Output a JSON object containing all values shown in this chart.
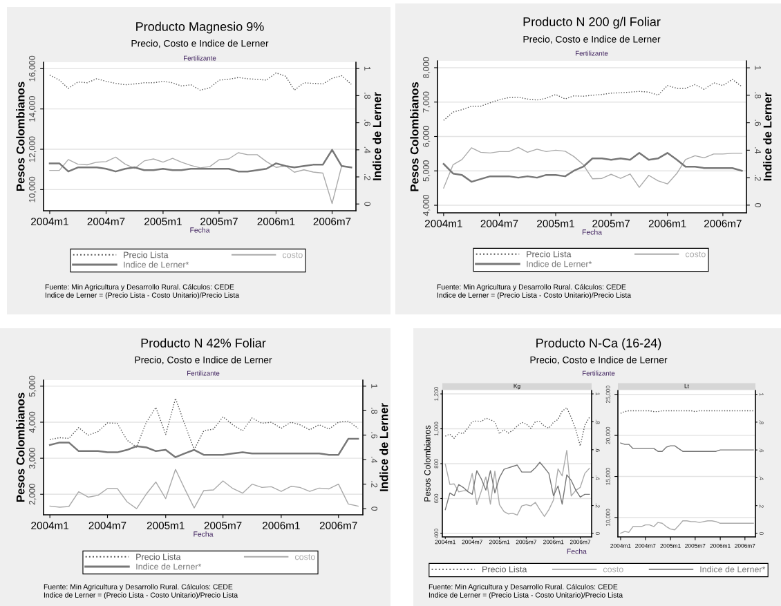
{
  "chart_data": [
    {
      "type": "line",
      "title": "Producto Magnesio 9%",
      "subtitle": "Precio, Costo e Indice de Lerner",
      "xlabel": "Fecha",
      "ylabel": "Pesos Colombianos",
      "y2label": "Indice de Lerner",
      "grid": "y",
      "legend": "bottom",
      "annotations": [
        "Fertilizante",
        "Fuente: Min Agricultura y Desarrollo Rural. Cálculos: CEDE",
        "Indice de Lerner = (Precio Lista - Costo Unitario)/Precio Lista"
      ],
      "x": [
        "2004-01",
        "2004-02",
        "2004-03",
        "2004-04",
        "2004-05",
        "2004-06",
        "2004-07",
        "2004-08",
        "2004-09",
        "2004-10",
        "2004-11",
        "2004-12",
        "2005-01",
        "2005-02",
        "2005-03",
        "2005-04",
        "2005-05",
        "2005-06",
        "2005-07",
        "2005-08",
        "2005-09",
        "2005-10",
        "2005-11",
        "2005-12",
        "2006-01",
        "2006-02",
        "2006-03",
        "2006-04",
        "2006-05",
        "2006-06",
        "2006-07",
        "2006-08",
        "2006-09"
      ],
      "xlim": [
        "2003-12-12",
        "2006-09-16"
      ],
      "xticks": [
        {
          "value": "2004-01",
          "label": "2004m1"
        },
        {
          "value": "2004-07",
          "label": "2004m7"
        },
        {
          "value": "2005-01",
          "label": "2005m1"
        },
        {
          "value": "2005-07",
          "label": "2005m7"
        },
        {
          "value": "2006-01",
          "label": "2006m1"
        },
        {
          "value": "2006-07",
          "label": "2006m7"
        }
      ],
      "ylim": [
        8950,
        16320
      ],
      "yticks": [
        {
          "value": 10000,
          "label": "10,000"
        },
        {
          "value": 12000,
          "label": "12,000"
        },
        {
          "value": 14000,
          "label": "14,000"
        },
        {
          "value": 16000,
          "label": "16,000"
        }
      ],
      "y2lim": [
        -0.05,
        1.047
      ],
      "y2ticks": [
        0,
        {
          "value": 0.2,
          "label": ".2"
        },
        {
          "value": 0.4,
          "label": ".4"
        },
        {
          "value": 0.6,
          "label": ".6"
        },
        {
          "value": 0.8,
          "label": ".8"
        },
        1
      ],
      "series": [
        {
          "name": "Precio Lista",
          "color": "#555555",
          "line_style": "dotted",
          "values": [
            15680,
            15430,
            15020,
            15340,
            15300,
            15500,
            15370,
            15270,
            15200,
            15240,
            15300,
            15300,
            15370,
            15300,
            15140,
            15200,
            14930,
            15050,
            15430,
            15470,
            15560,
            15500,
            15470,
            15430,
            15790,
            15620,
            14930,
            15300,
            15270,
            15240,
            15520,
            15650,
            15220
          ]
        },
        {
          "name": "costo",
          "color": "#aaaaaa",
          "values": [
            10950,
            10950,
            11490,
            11260,
            11230,
            11360,
            11390,
            11610,
            11260,
            11050,
            11420,
            11520,
            11360,
            11550,
            11360,
            11200,
            11080,
            11140,
            11480,
            11520,
            11830,
            11730,
            11730,
            11390,
            11100,
            11180,
            10860,
            10980,
            10870,
            10820,
            9310,
            11180,
            11100
          ]
        },
        {
          "name": "Indice de Lerner*",
          "color": "#777777",
          "axis": "y2",
          "values": [
            0.3,
            0.3,
            0.24,
            0.27,
            0.27,
            0.27,
            0.26,
            0.24,
            0.26,
            0.27,
            0.25,
            0.25,
            0.26,
            0.25,
            0.25,
            0.26,
            0.26,
            0.26,
            0.26,
            0.26,
            0.24,
            0.24,
            0.25,
            0.26,
            0.3,
            0.28,
            0.27,
            0.28,
            0.29,
            0.29,
            0.4,
            0.28,
            0.27
          ]
        }
      ]
    },
    {
      "type": "line",
      "title": "Producto N 200 g/l Foliar",
      "subtitle": "Precio, Costo e Indice de Lerner",
      "xlabel": "Fecha",
      "ylabel": "Pesos Colombianos",
      "y2label": "Indice de Lerner",
      "grid": "y",
      "legend": "bottom",
      "annotations": [
        "Fertilizante",
        "Fuente: Min Agricultura y Desarrollo Rural. Cálculos: CEDE",
        "Indice de Lerner = (Precio Lista - Costo Unitario)/Precio Lista"
      ],
      "x": [
        "2004-01",
        "2004-02",
        "2004-03",
        "2004-04",
        "2004-05",
        "2004-06",
        "2004-07",
        "2004-08",
        "2004-09",
        "2004-10",
        "2004-11",
        "2004-12",
        "2005-01",
        "2005-02",
        "2005-03",
        "2005-04",
        "2005-05",
        "2005-06",
        "2005-07",
        "2005-08",
        "2005-09",
        "2005-10",
        "2005-11",
        "2005-12",
        "2006-01",
        "2006-02",
        "2006-03",
        "2006-04",
        "2006-05",
        "2006-06",
        "2006-07",
        "2006-08",
        "2006-09"
      ],
      "xlim": [
        "2003-12-12",
        "2006-09-16"
      ],
      "xticks": [
        {
          "value": "2004-01",
          "label": "2004m1"
        },
        {
          "value": "2004-07",
          "label": "2004m7"
        },
        {
          "value": "2005-01",
          "label": "2005m1"
        },
        {
          "value": "2005-07",
          "label": "2005m7"
        },
        {
          "value": "2006-01",
          "label": "2006m1"
        },
        {
          "value": "2006-07",
          "label": "2006m7"
        }
      ],
      "ylim": [
        3780,
        8200
      ],
      "yticks": [
        {
          "value": 4000,
          "label": "4,000"
        },
        {
          "value": 5000,
          "label": "5,000"
        },
        {
          "value": 6000,
          "label": "6,000"
        },
        {
          "value": 7000,
          "label": "7,000"
        },
        {
          "value": 8000,
          "label": "8,000"
        }
      ],
      "y2lim": [
        -0.056,
        1.051
      ],
      "y2ticks": [
        0,
        {
          "value": 0.2,
          "label": ".2"
        },
        {
          "value": 0.4,
          "label": ".4"
        },
        {
          "value": 0.6,
          "label": ".6"
        },
        {
          "value": 0.8,
          "label": ".8"
        },
        1
      ],
      "series": [
        {
          "name": "Precio Lista",
          "color": "#555555",
          "line_style": "dotted",
          "values": [
            6470,
            6710,
            6780,
            6880,
            6880,
            6980,
            7070,
            7130,
            7140,
            7090,
            7060,
            7110,
            7220,
            7090,
            7180,
            7170,
            7200,
            7220,
            7260,
            7270,
            7290,
            7310,
            7290,
            7200,
            7480,
            7400,
            7400,
            7510,
            7370,
            7560,
            7480,
            7660,
            7450
          ]
        },
        {
          "name": "costo",
          "color": "#aaaaaa",
          "values": [
            4500,
            5180,
            5330,
            5670,
            5540,
            5520,
            5560,
            5560,
            5680,
            5540,
            5630,
            5560,
            5600,
            5570,
            5420,
            5180,
            4770,
            4780,
            4900,
            4780,
            4910,
            4520,
            4870,
            4710,
            4620,
            4930,
            5330,
            5440,
            5380,
            5490,
            5490,
            5510,
            5510
          ]
        },
        {
          "name": "Indice de Lerner*",
          "color": "#777777",
          "axis": "y2",
          "values": [
            0.3,
            0.23,
            0.22,
            0.17,
            0.19,
            0.21,
            0.21,
            0.21,
            0.2,
            0.21,
            0.2,
            0.22,
            0.22,
            0.21,
            0.25,
            0.28,
            0.34,
            0.34,
            0.33,
            0.34,
            0.33,
            0.38,
            0.33,
            0.34,
            0.38,
            0.33,
            0.28,
            0.28,
            0.27,
            0.27,
            0.27,
            0.27,
            0.25
          ]
        }
      ]
    },
    {
      "type": "line",
      "title": "Producto N 42% Foliar",
      "subtitle": "Precio, Costo e Indice de Lerner",
      "xlabel": "Fecha",
      "ylabel": "Pesos Colombianos",
      "y2label": "Indice de Lerner",
      "grid": "y",
      "legend": "bottom",
      "annotations": [
        "Fertilizante",
        "Fuente: Min Agricultura y Desarrollo Rural. Cálculos: CEDE",
        "Indice de Lerner = (Precio Lista - Costo Unitario)/Precio Lista"
      ],
      "x": [
        "2004-01",
        "2004-02",
        "2004-03",
        "2004-04",
        "2004-05",
        "2004-06",
        "2004-07",
        "2004-08",
        "2004-09",
        "2004-10",
        "2004-11",
        "2004-12",
        "2005-01",
        "2005-02",
        "2005-03",
        "2005-04",
        "2005-05",
        "2005-06",
        "2005-07",
        "2005-08",
        "2005-09",
        "2005-10",
        "2005-11",
        "2005-12",
        "2006-01",
        "2006-02",
        "2006-03",
        "2006-04",
        "2006-05",
        "2006-06",
        "2006-07",
        "2006-08",
        "2006-09"
      ],
      "xlim": [
        "2003-12-12",
        "2006-09-16"
      ],
      "xticks": [
        {
          "value": "2004-01",
          "label": "2004m1"
        },
        {
          "value": "2004-07",
          "label": "2004m7"
        },
        {
          "value": "2005-01",
          "label": "2005m1"
        },
        {
          "value": "2005-07",
          "label": "2005m7"
        },
        {
          "value": "2006-01",
          "label": "2006m1"
        },
        {
          "value": "2006-07",
          "label": "2006m7"
        }
      ],
      "ylim": [
        1430,
        5170
      ],
      "yticks": [
        {
          "value": 2000,
          "label": "2,000"
        },
        {
          "value": 3000,
          "label": "3,000"
        },
        {
          "value": 4000,
          "label": "4,000"
        },
        {
          "value": 5000,
          "label": "5,000"
        }
      ],
      "y2lim": [
        -0.05,
        1.05
      ],
      "y2ticks": [
        0,
        {
          "value": 0.2,
          "label": ".2"
        },
        {
          "value": 0.4,
          "label": ".4"
        },
        {
          "value": 0.6,
          "label": ".6"
        },
        {
          "value": 0.8,
          "label": ".8"
        },
        1
      ],
      "series": [
        {
          "name": "Precio Lista",
          "color": "#555555",
          "line_style": "dotted",
          "values": [
            3520,
            3570,
            3550,
            3850,
            3640,
            3740,
            3980,
            3970,
            3500,
            3310,
            4000,
            4410,
            3660,
            4660,
            3970,
            3240,
            3760,
            3810,
            4150,
            3930,
            3760,
            4120,
            3970,
            4000,
            3830,
            4000,
            3930,
            3790,
            3930,
            3810,
            4000,
            4030,
            3830
          ]
        },
        {
          "name": "costo",
          "color": "#aaaaaa",
          "values": [
            1670,
            1640,
            1660,
            2070,
            1920,
            1970,
            2160,
            2160,
            1790,
            1600,
            2010,
            2340,
            1880,
            2690,
            2170,
            1620,
            2100,
            2120,
            2370,
            2160,
            2030,
            2280,
            2190,
            2210,
            2080,
            2220,
            2190,
            2080,
            2170,
            2150,
            2280,
            1730,
            1670
          ]
        },
        {
          "name": "Indice de Lerner*",
          "color": "#777777",
          "axis": "y2",
          "values": [
            0.52,
            0.54,
            0.54,
            0.47,
            0.47,
            0.47,
            0.46,
            0.46,
            0.48,
            0.51,
            0.5,
            0.47,
            0.48,
            0.42,
            0.45,
            0.48,
            0.44,
            0.44,
            0.44,
            0.45,
            0.46,
            0.45,
            0.45,
            0.45,
            0.45,
            0.45,
            0.45,
            0.45,
            0.45,
            0.44,
            0.44,
            0.57,
            0.57
          ]
        }
      ]
    },
    {
      "type": "line",
      "title": "Producto N-Ca (16-24)",
      "subtitle": "Precio, Costo e Indice de Lerner",
      "xlabel": "Fecha",
      "ylabel": "Pesos Colombianos",
      "grid": "y",
      "legend": "bottom",
      "annotations": [
        "Fertilizante",
        "Kg",
        "Fuente: Min Agricultura y Desarrollo Rural. Cálculos: CEDE",
        "Indice de Lerner = (Precio Lista - Costo Unitario)/Precio Lista"
      ],
      "x": [
        "2004-01",
        "2004-02",
        "2004-03",
        "2004-04",
        "2004-05",
        "2004-06",
        "2004-07",
        "2004-08",
        "2004-09",
        "2004-10",
        "2004-11",
        "2004-12",
        "2005-01",
        "2005-02",
        "2005-03",
        "2005-04",
        "2005-05",
        "2005-06",
        "2005-07",
        "2005-08",
        "2005-09",
        "2005-10",
        "2005-11",
        "2005-12",
        "2006-01",
        "2006-02",
        "2006-03",
        "2006-04",
        "2006-05",
        "2006-06",
        "2006-07",
        "2006-08",
        "2006-09"
      ],
      "xlim": [
        "2003-12-12",
        "2006-09-16"
      ],
      "xticks": [
        {
          "value": "2004-01",
          "label": "2004m1"
        },
        {
          "value": "2004-07",
          "label": "2004m7"
        },
        {
          "value": "2005-01",
          "label": "2005m1"
        },
        {
          "value": "2005-07",
          "label": "2005m7"
        },
        {
          "value": "2006-01",
          "label": "2006m1"
        },
        {
          "value": "2006-07",
          "label": "2006m7"
        }
      ],
      "ylim": [
        380,
        1220
      ],
      "yticks": [
        400,
        600,
        800,
        {
          "value": 1000,
          "label": "1,000"
        },
        {
          "value": 1200,
          "label": "1,200"
        }
      ],
      "y2lim": [
        -0.025,
        1.025
      ],
      "y2ticks": [
        0,
        {
          "value": 0.2,
          "label": ".2"
        },
        {
          "value": 0.4,
          "label": ".4"
        },
        {
          "value": 0.6,
          "label": ".6"
        },
        {
          "value": 0.8,
          "label": ".8"
        },
        1
      ],
      "series": [
        {
          "name": "Precio Lista",
          "color": "#555555",
          "line_style": "dotted",
          "values": [
            958,
            969,
            946,
            978,
            972,
            1004,
            1041,
            1045,
            1041,
            1061,
            1052,
            1039,
            972,
            995,
            975,
            991,
            1015,
            1037,
            1028,
            1002,
            1041,
            1041,
            1015,
            1004,
            1037,
            1054,
            1101,
            1121,
            1065,
            995,
            902,
            1021,
            1065
          ]
        },
        {
          "name": "costo",
          "color": "#aaaaaa",
          "values": [
            797,
            681,
            684,
            638,
            644,
            647,
            744,
            565,
            644,
            724,
            568,
            757,
            565,
            525,
            512,
            515,
            505,
            558,
            565,
            558,
            578,
            536,
            497,
            536,
            591,
            770,
            730,
            876,
            615,
            647,
            664,
            744,
            773
          ]
        },
        {
          "name": "Indice de Lerner*",
          "color": "#777777",
          "axis": "y2",
          "values": [
            0.17,
            0.29,
            0.27,
            0.35,
            0.33,
            0.3,
            0.28,
            0.45,
            0.39,
            0.31,
            0.45,
            0.29,
            0.4,
            0.46,
            0.47,
            0.48,
            0.49,
            0.44,
            0.44,
            0.44,
            0.47,
            0.51,
            0.47,
            0.43,
            0.27,
            0.34,
            0.21,
            0.42,
            0.38,
            0.31,
            0.26,
            0.28,
            0.28
          ]
        }
      ]
    },
    {
      "type": "line",
      "title": "Lt",
      "grid": "y",
      "x": [
        "2004-01",
        "2004-02",
        "2004-03",
        "2004-04",
        "2004-05",
        "2004-06",
        "2004-07",
        "2004-08",
        "2004-09",
        "2004-10",
        "2004-11",
        "2004-12",
        "2005-01",
        "2005-02",
        "2005-03",
        "2005-04",
        "2005-05",
        "2005-06",
        "2005-07",
        "2005-08",
        "2005-09",
        "2005-10",
        "2005-11",
        "2005-12",
        "2006-01",
        "2006-02",
        "2006-03",
        "2006-04",
        "2006-05",
        "2006-06",
        "2006-07",
        "2006-08",
        "2006-09"
      ],
      "xlim": [
        "2003-12-12",
        "2006-09-16"
      ],
      "xticks": [
        {
          "value": "2004-01",
          "label": "2004m1"
        },
        {
          "value": "2004-07",
          "label": "2004m7"
        },
        {
          "value": "2005-01",
          "label": "2005m1"
        },
        {
          "value": "2005-07",
          "label": "2005m7"
        },
        {
          "value": "2006-01",
          "label": "2006m1"
        },
        {
          "value": "2006-07",
          "label": "2006m7"
        }
      ],
      "ylim": [
        7640,
        25480
      ],
      "yticks": [
        {
          "value": 10000,
          "label": "10,000"
        },
        {
          "value": 15000,
          "label": "15,000"
        },
        {
          "value": 20000,
          "label": "20,000"
        },
        {
          "value": 25000,
          "label": "25,000"
        }
      ],
      "y2lim": [
        -0.025,
        1.028
      ],
      "y2ticks": [
        0,
        {
          "value": 0.2,
          "label": ".2"
        },
        {
          "value": 0.4,
          "label": ".4"
        },
        {
          "value": 0.6,
          "label": ".6"
        },
        {
          "value": 0.8,
          "label": ".8"
        },
        1
      ],
      "series": [
        {
          "color": "#555555",
          "line_style": "dotted",
          "values": [
            22700,
            22900,
            23000,
            23000,
            23000,
            23000,
            23000,
            23000,
            22900,
            22900,
            23000,
            23000,
            23000,
            23000,
            23000,
            23000,
            23000,
            23000,
            22900,
            23000,
            23000,
            23000,
            23000,
            23000,
            23000,
            23000,
            23000,
            23000,
            23000,
            23000,
            23000,
            23000,
            23000
          ]
        },
        {
          "color": "#aaaaaa",
          "values": [
            8100,
            8300,
            8200,
            8900,
            8900,
            8900,
            9100,
            9100,
            8900,
            9400,
            9300,
            8900,
            8600,
            8500,
            9000,
            9600,
            9600,
            9500,
            9500,
            9400,
            9500,
            9600,
            9600,
            9500,
            9300,
            9300,
            9300,
            9300,
            9300,
            9300,
            9300,
            9300,
            9300
          ]
        },
        {
          "color": "#777777",
          "axis": "y2",
          "values": [
            0.65,
            0.64,
            0.64,
            0.61,
            0.61,
            0.61,
            0.61,
            0.61,
            0.61,
            0.59,
            0.59,
            0.62,
            0.63,
            0.63,
            0.61,
            0.59,
            0.59,
            0.59,
            0.59,
            0.59,
            0.59,
            0.59,
            0.59,
            0.59,
            0.6,
            0.6,
            0.6,
            0.6,
            0.6,
            0.6,
            0.6,
            0.6,
            0.6
          ]
        }
      ]
    }
  ]
}
